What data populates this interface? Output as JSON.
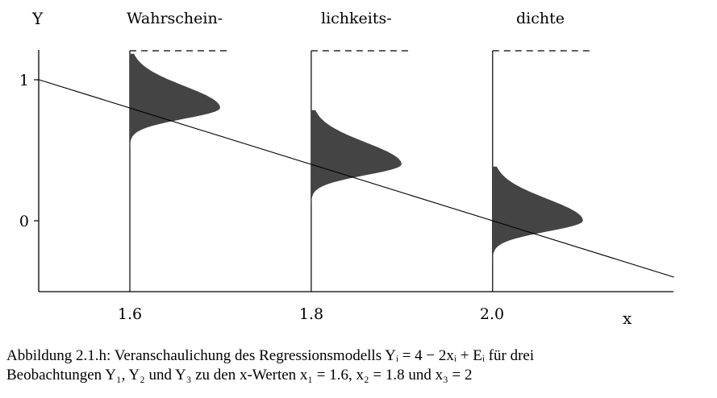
{
  "figure": {
    "y_axis_label": "Y",
    "x_axis_label": "x",
    "header_words": [
      "Wahrschein-",
      "lichkeits-",
      "dichte"
    ],
    "y_ticks": [
      "1",
      "0"
    ],
    "x_ticks": [
      "1.6",
      "1.8",
      "2.0"
    ]
  },
  "chart_data": {
    "type": "line",
    "title": "",
    "xlabel": "x",
    "ylabel": "Y",
    "xlim": [
      1.5,
      2.2
    ],
    "ylim": [
      -0.5,
      1.2
    ],
    "regression_line": {
      "intercept": 4,
      "slope": -2
    },
    "x": [
      1.6,
      1.8,
      2.0
    ],
    "mean_y": [
      0.8,
      0.4,
      0.0
    ],
    "density_sd": 0.12,
    "series": [
      {
        "x": [
          1.5,
          2.2
        ],
        "values": [
          1.0,
          -0.4
        ]
      }
    ]
  },
  "caption": {
    "line1": "Abbildung 2.1.h: Veranschaulichung des Regressionsmodells Yᵢ = 4 − 2xᵢ + Eᵢ für drei",
    "line2": "Beobachtungen Y₁, Y₂ und Y₃ zu den x-Werten x₁ = 1.6, x₂ = 1.8 und x₃ = 2"
  }
}
